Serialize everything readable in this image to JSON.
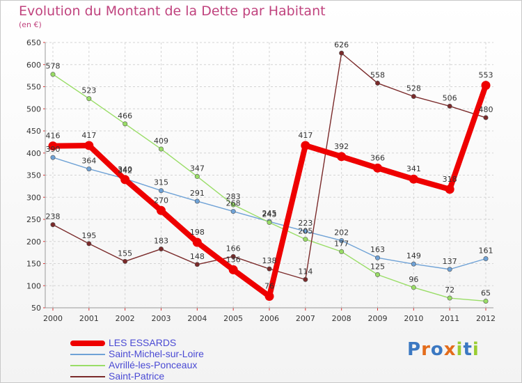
{
  "header": {
    "title": "Evolution du Montant de la Dette par Habitant",
    "subtitle": "(en €)"
  },
  "brand": {
    "letters": [
      "P",
      "r",
      "o",
      "x",
      "i",
      "t",
      "i"
    ],
    "colors": [
      "#3b78c2",
      "#e36c1b",
      "#3b78c2",
      "#e36c1b",
      "#9acd32",
      "#3b78c2",
      "#9acd32"
    ]
  },
  "chart_data": {
    "type": "line",
    "title": "Evolution du Montant de la Dette par Habitant",
    "subtitle": "(en €)",
    "x": [
      "2000",
      "2001",
      "2002",
      "2003",
      "2004",
      "2005",
      "2006",
      "2007",
      "2008",
      "2009",
      "2010",
      "2011",
      "2012"
    ],
    "ylim": [
      50,
      650
    ],
    "yticks": [
      50,
      100,
      150,
      200,
      250,
      300,
      350,
      400,
      450,
      500,
      550,
      600,
      650
    ],
    "grid": true,
    "legend_position": "bottom-left",
    "series": [
      {
        "name": "LES ESSARDS",
        "color": "#ee0000",
        "thick": true,
        "values": [
          416,
          417,
          340,
          270,
          198,
          136,
          76,
          417,
          392,
          366,
          341,
          318,
          553
        ],
        "labels": [
          "416",
          "417",
          "340",
          "270",
          "198",
          "136",
          "76",
          "417",
          "392",
          "366",
          "341",
          "318",
          "553"
        ]
      },
      {
        "name": "Saint-Michel-sur-Loire",
        "color": "#6fa2d6",
        "thick": false,
        "values": [
          390,
          364,
          342,
          315,
          291,
          268,
          245,
          223,
          202,
          163,
          149,
          137,
          161
        ],
        "labels": [
          "390",
          "364",
          "342",
          "315",
          "291",
          "268",
          "245",
          "223",
          "202",
          "163",
          "149",
          "137",
          "161"
        ]
      },
      {
        "name": "Avrillé-les-Ponceaux",
        "color": "#99dd66",
        "thick": false,
        "values": [
          578,
          523,
          466,
          409,
          347,
          283,
          243,
          205,
          177,
          125,
          96,
          72,
          65
        ],
        "labels": [
          "578",
          "523",
          "466",
          "409",
          "347",
          "283",
          "243",
          "205",
          "177",
          "125",
          "96",
          "72",
          "65"
        ]
      },
      {
        "name": "Saint-Patrice",
        "color": "#7a2a2a",
        "thick": false,
        "values": [
          238,
          195,
          155,
          183,
          148,
          166,
          138,
          114,
          626,
          558,
          528,
          506,
          480
        ],
        "labels": [
          "238",
          "195",
          "155",
          "183",
          "148",
          "166",
          "138",
          "114",
          "626",
          "558",
          "528",
          "506",
          "480"
        ]
      }
    ]
  }
}
